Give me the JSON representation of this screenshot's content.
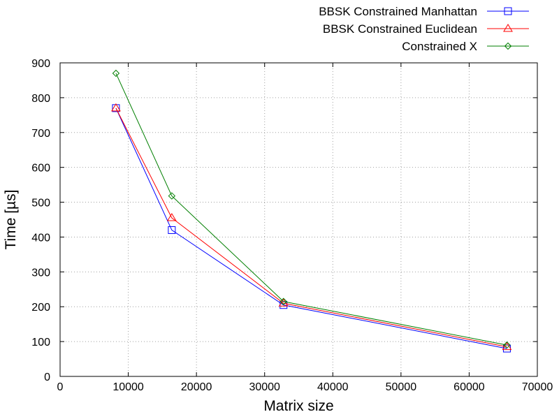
{
  "chart_data": {
    "type": "line",
    "xlabel": "Matrix size",
    "ylabel": "Time [µs]",
    "xlim": [
      0,
      70000
    ],
    "ylim": [
      0,
      900
    ],
    "xticks": [
      0,
      10000,
      20000,
      30000,
      40000,
      50000,
      60000,
      70000
    ],
    "yticks": [
      0,
      100,
      200,
      300,
      400,
      500,
      600,
      700,
      800,
      900
    ],
    "grid": true,
    "legend_position": "top-right, outside plot area",
    "x": [
      8192,
      16384,
      32768,
      65536
    ],
    "series": [
      {
        "name": "BBSK Constrained Manhattan",
        "color": "#0000ff",
        "marker": "square",
        "values": [
          770,
          420,
          205,
          80
        ]
      },
      {
        "name": "BBSK Constrained Euclidean",
        "color": "#ff0000",
        "marker": "triangle",
        "values": [
          770,
          455,
          210,
          85
        ]
      },
      {
        "name": "Constrained X",
        "color": "#007f00",
        "marker": "diamond",
        "values": [
          870,
          518,
          215,
          90
        ]
      }
    ]
  }
}
